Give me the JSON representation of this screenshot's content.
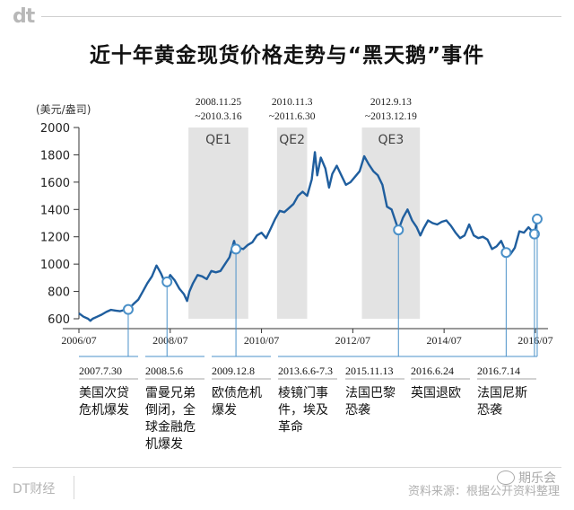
{
  "brand": {
    "logo": "dt",
    "footer_name": "DT财经"
  },
  "footer": {
    "source": "资料来源：根据公开资料整理",
    "watermark": "期乐会"
  },
  "colors": {
    "line": "#1f5e9e",
    "band": "#e3e3e3",
    "callout": "#4a90c8"
  },
  "chart_data": {
    "type": "line",
    "title": "近十年黄金现货价格走势与“黑天鹅”事件",
    "ylabel": "(美元/盎司)",
    "ylim": [
      600,
      2000
    ],
    "yticks": [
      "2000",
      "1800",
      "1600",
      "1400",
      "1200",
      "1000",
      "800",
      "600"
    ],
    "xlim": [
      2006.5,
      2016.58
    ],
    "xticks": [
      {
        "x": 2006.5,
        "label": "2006/07"
      },
      {
        "x": 2008.5,
        "label": "2008/07"
      },
      {
        "x": 2010.5,
        "label": "2010/07"
      },
      {
        "x": 2012.5,
        "label": "2012/07"
      },
      {
        "x": 2014.5,
        "label": "2014/07"
      },
      {
        "x": 2016.5,
        "label": "2016/07"
      }
    ],
    "qe_bands": [
      {
        "name": "QE1",
        "start": 2008.9,
        "end": 2010.21,
        "range_line1": "2008.11.25",
        "range_line2": "~2010.3.16"
      },
      {
        "name": "QE2",
        "start": 2010.84,
        "end": 2011.5,
        "range_line1": "2010.11.3",
        "range_line2": "~2011.6.30"
      },
      {
        "name": "QE3",
        "start": 2012.7,
        "end": 2013.97,
        "range_line1": "2012.9.13",
        "range_line2": "~2013.12.19"
      }
    ],
    "series": [
      {
        "points": [
          [
            2006.5,
            640
          ],
          [
            2006.6,
            615
          ],
          [
            2006.7,
            600
          ],
          [
            2006.75,
            585
          ],
          [
            2006.8,
            600
          ],
          [
            2006.9,
            615
          ],
          [
            2007.0,
            630
          ],
          [
            2007.1,
            650
          ],
          [
            2007.2,
            665
          ],
          [
            2007.3,
            660
          ],
          [
            2007.4,
            655
          ],
          [
            2007.5,
            665
          ],
          [
            2007.58,
            668
          ],
          [
            2007.7,
            710
          ],
          [
            2007.8,
            740
          ],
          [
            2007.9,
            800
          ],
          [
            2008.0,
            860
          ],
          [
            2008.1,
            910
          ],
          [
            2008.2,
            990
          ],
          [
            2008.25,
            960
          ],
          [
            2008.3,
            930
          ],
          [
            2008.35,
            890
          ],
          [
            2008.43,
            870
          ],
          [
            2008.5,
            920
          ],
          [
            2008.6,
            880
          ],
          [
            2008.7,
            820
          ],
          [
            2008.8,
            780
          ],
          [
            2008.87,
            730
          ],
          [
            2008.92,
            800
          ],
          [
            2009.0,
            860
          ],
          [
            2009.1,
            920
          ],
          [
            2009.2,
            910
          ],
          [
            2009.3,
            890
          ],
          [
            2009.4,
            950
          ],
          [
            2009.5,
            940
          ],
          [
            2009.6,
            950
          ],
          [
            2009.7,
            1000
          ],
          [
            2009.8,
            1050
          ],
          [
            2009.9,
            1170
          ],
          [
            2009.94,
            1110
          ],
          [
            2010.0,
            1120
          ],
          [
            2010.1,
            1110
          ],
          [
            2010.2,
            1140
          ],
          [
            2010.3,
            1160
          ],
          [
            2010.4,
            1210
          ],
          [
            2010.5,
            1230
          ],
          [
            2010.6,
            1190
          ],
          [
            2010.7,
            1260
          ],
          [
            2010.8,
            1330
          ],
          [
            2010.9,
            1390
          ],
          [
            2011.0,
            1380
          ],
          [
            2011.1,
            1410
          ],
          [
            2011.2,
            1440
          ],
          [
            2011.3,
            1500
          ],
          [
            2011.4,
            1530
          ],
          [
            2011.5,
            1500
          ],
          [
            2011.6,
            1620
          ],
          [
            2011.67,
            1820
          ],
          [
            2011.72,
            1650
          ],
          [
            2011.8,
            1780
          ],
          [
            2011.9,
            1700
          ],
          [
            2011.98,
            1560
          ],
          [
            2012.05,
            1660
          ],
          [
            2012.15,
            1720
          ],
          [
            2012.25,
            1650
          ],
          [
            2012.35,
            1580
          ],
          [
            2012.45,
            1600
          ],
          [
            2012.55,
            1640
          ],
          [
            2012.65,
            1680
          ],
          [
            2012.75,
            1790
          ],
          [
            2012.85,
            1730
          ],
          [
            2012.95,
            1680
          ],
          [
            2013.05,
            1650
          ],
          [
            2013.15,
            1580
          ],
          [
            2013.25,
            1420
          ],
          [
            2013.35,
            1400
          ],
          [
            2013.45,
            1300
          ],
          [
            2013.5,
            1250
          ],
          [
            2013.6,
            1340
          ],
          [
            2013.7,
            1400
          ],
          [
            2013.8,
            1320
          ],
          [
            2013.9,
            1270
          ],
          [
            2013.98,
            1210
          ],
          [
            2014.05,
            1260
          ],
          [
            2014.15,
            1320
          ],
          [
            2014.25,
            1300
          ],
          [
            2014.35,
            1290
          ],
          [
            2014.45,
            1310
          ],
          [
            2014.55,
            1320
          ],
          [
            2014.65,
            1280
          ],
          [
            2014.75,
            1230
          ],
          [
            2014.85,
            1190
          ],
          [
            2014.95,
            1210
          ],
          [
            2015.05,
            1290
          ],
          [
            2015.15,
            1210
          ],
          [
            2015.25,
            1190
          ],
          [
            2015.35,
            1200
          ],
          [
            2015.45,
            1180
          ],
          [
            2015.55,
            1110
          ],
          [
            2015.65,
            1130
          ],
          [
            2015.75,
            1170
          ],
          [
            2015.86,
            1085
          ],
          [
            2015.95,
            1070
          ],
          [
            2016.05,
            1120
          ],
          [
            2016.15,
            1240
          ],
          [
            2016.25,
            1230
          ],
          [
            2016.35,
            1270
          ],
          [
            2016.48,
            1220
          ],
          [
            2016.54,
            1330
          ],
          [
            2016.58,
            1345
          ]
        ]
      }
    ],
    "events": [
      {
        "x": 2007.58,
        "y": 668,
        "date": "2007.7.30",
        "desc_line1": "美国次贷",
        "desc_line2": "危机爆发",
        "desc_line3": "",
        "desc_line4": ""
      },
      {
        "x": 2008.43,
        "y": 870,
        "date": "2008.5.6",
        "desc_line1": "雷曼兄弟",
        "desc_line2": "倒闭，全",
        "desc_line3": "球金融危",
        "desc_line4": "机爆发"
      },
      {
        "x": 2009.94,
        "y": 1110,
        "date": "2009.12.8",
        "desc_line1": "欧债危机",
        "desc_line2": "爆发",
        "desc_line3": "",
        "desc_line4": ""
      },
      {
        "x": 2013.5,
        "y": 1250,
        "date": "2013.6.6-7.3",
        "desc_line1": "棱镜门事",
        "desc_line2": "件，埃及",
        "desc_line3": "革命",
        "desc_line4": ""
      },
      {
        "x": 2015.86,
        "y": 1085,
        "date": "2015.11.13",
        "desc_line1": "法国巴黎",
        "desc_line2": "恐袭",
        "desc_line3": "",
        "desc_line4": ""
      },
      {
        "x": 2016.48,
        "y": 1220,
        "date": "2016.6.24",
        "desc_line1": "英国退欧",
        "desc_line2": "",
        "desc_line3": "",
        "desc_line4": ""
      },
      {
        "x": 2016.54,
        "y": 1330,
        "date": "2016.7.14",
        "desc_line1": "法国尼斯",
        "desc_line2": "恐袭",
        "desc_line3": "",
        "desc_line4": ""
      }
    ]
  }
}
